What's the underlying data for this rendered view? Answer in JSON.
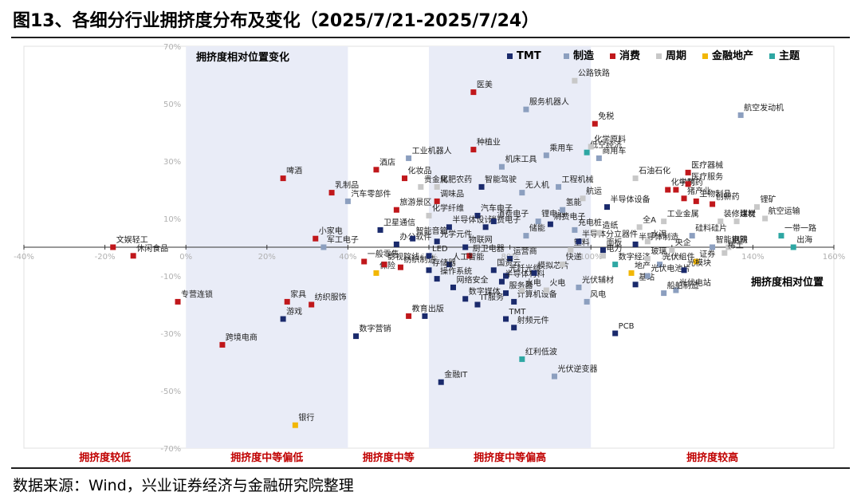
{
  "figure": {
    "title": "图13、各细分行业拥挤度分布及变化（2025/7/21-2025/7/24）",
    "source": "数据来源：Wind，兴业证券经济与金融研究院整理"
  },
  "colors": {
    "TMT": "#1a2a6c",
    "制造": "#8c9fbf",
    "消费": "#c0171b",
    "周期": "#c8c8c8",
    "金融地产": "#f2b705",
    "主题": "#2ea7a3",
    "zone_fill": "#e9ecf7",
    "zone_label": "#c00000"
  },
  "chart_data": {
    "type": "scatter",
    "xlabel": "拥挤度相对位置",
    "ylabel": "拥挤度相对位置变化",
    "x_ticks": [
      "-40%",
      "-20%",
      "0%",
      "20%",
      "40%",
      "60%",
      "80%",
      "100%",
      "120%",
      "140%",
      "160%"
    ],
    "y_ticks": [
      "70%",
      "50%",
      "30%",
      "10%",
      "-10%",
      "-30%",
      "-50%",
      "-70%"
    ],
    "xlim": [
      -40,
      160
    ],
    "ylim": [
      -70,
      70
    ],
    "legend_position": "top-right",
    "legend": [
      "TMT",
      "制造",
      "消费",
      "周期",
      "金融地产",
      "主题"
    ],
    "zones": [
      {
        "label": "拥挤度较低",
        "x_range": [
          -40,
          0
        ],
        "shaded": false
      },
      {
        "label": "拥挤度中等偏低",
        "x_range": [
          0,
          40
        ],
        "shaded": true
      },
      {
        "label": "拥挤度中等",
        "x_range": [
          40,
          60
        ],
        "shaded": false
      },
      {
        "label": "拥挤度中等偏高",
        "x_range": [
          60,
          100
        ],
        "shaded": true
      },
      {
        "label": "拥挤度较高",
        "x_range": [
          100,
          160
        ],
        "shaded": false
      }
    ],
    "points": [
      {
        "label": "文娱轻工",
        "group": "消费",
        "x": -18,
        "y": 0
      },
      {
        "label": "休闲食品",
        "group": "消费",
        "x": -13,
        "y": -3
      },
      {
        "label": "专营连锁",
        "group": "消费",
        "x": -2,
        "y": -19
      },
      {
        "label": "跨境电商",
        "group": "消费",
        "x": 9,
        "y": -34
      },
      {
        "label": "游戏",
        "group": "TMT",
        "x": 24,
        "y": -25
      },
      {
        "label": "家具",
        "group": "消费",
        "x": 25,
        "y": -19
      },
      {
        "label": "纺织服饰",
        "group": "消费",
        "x": 31,
        "y": -20
      },
      {
        "label": "银行",
        "group": "金融地产",
        "x": 27,
        "y": -62
      },
      {
        "label": "啤酒",
        "group": "消费",
        "x": 24,
        "y": 24
      },
      {
        "label": "乳制品",
        "group": "消费",
        "x": 36,
        "y": 19
      },
      {
        "label": "汽车零部件",
        "group": "制造",
        "x": 40,
        "y": 16
      },
      {
        "label": "小家电",
        "group": "消费",
        "x": 32,
        "y": 3
      },
      {
        "label": "军工电子",
        "group": "制造",
        "x": 34,
        "y": 0
      },
      {
        "label": "保险",
        "group": "金融地产",
        "x": 47,
        "y": -9
      },
      {
        "label": "一般零售",
        "group": "消费",
        "x": 44,
        "y": -5
      },
      {
        "label": "影视院线",
        "group": "消费",
        "x": 49,
        "y": -6
      },
      {
        "label": "数字营销",
        "group": "TMT",
        "x": 42,
        "y": -31
      },
      {
        "label": "酒店",
        "group": "消费",
        "x": 47,
        "y": 27
      },
      {
        "label": "工业机器人",
        "group": "制造",
        "x": 55,
        "y": 31
      },
      {
        "label": "化妆品",
        "group": "消费",
        "x": 54,
        "y": 24
      },
      {
        "label": "贵金属",
        "group": "周期",
        "x": 58,
        "y": 21
      },
      {
        "label": "旅游景区",
        "group": "消费",
        "x": 52,
        "y": 13
      },
      {
        "label": "卫星通信",
        "group": "TMT",
        "x": 48,
        "y": 6
      },
      {
        "label": "办公软件",
        "group": "TMT",
        "x": 52,
        "y": 1
      },
      {
        "label": "智能音箱",
        "group": "TMT",
        "x": 56,
        "y": 3
      },
      {
        "label": "纺织制造",
        "group": "消费",
        "x": 53,
        "y": -7
      },
      {
        "label": "教育",
        "group": "消费",
        "x": 55,
        "y": -24
      },
      {
        "label": "出版",
        "group": "TMT",
        "x": 59,
        "y": -24
      },
      {
        "label": "医美",
        "group": "消费",
        "x": 71,
        "y": 54
      },
      {
        "label": "种植业",
        "group": "消费",
        "x": 71,
        "y": 34
      },
      {
        "label": "化肥农药",
        "group": "周期",
        "x": 62,
        "y": 21
      },
      {
        "label": "调味品",
        "group": "消费",
        "x": 62,
        "y": 16
      },
      {
        "label": "智能驾驶",
        "group": "TMT",
        "x": 73,
        "y": 21
      },
      {
        "label": "化学纤维",
        "group": "周期",
        "x": 60,
        "y": 11
      },
      {
        "label": "汽车电子",
        "group": "TMT",
        "x": 72,
        "y": 11
      },
      {
        "label": "半导体设计",
        "group": "TMT",
        "x": 65,
        "y": 7
      },
      {
        "label": "消费电子",
        "group": "TMT",
        "x": 74,
        "y": 7
      },
      {
        "label": "光学元件",
        "group": "TMT",
        "x": 62,
        "y": 2
      },
      {
        "label": "物联网",
        "group": "TMT",
        "x": 69,
        "y": 0
      },
      {
        "label": "LED",
        "group": "TMT",
        "x": 60,
        "y": -3
      },
      {
        "label": "厨卫电器",
        "group": "消费",
        "x": 70,
        "y": -3
      },
      {
        "label": "人工智能",
        "group": "TMT",
        "x": 65,
        "y": -6
      },
      {
        "label": "存储器",
        "group": "TMT",
        "x": 60,
        "y": -8
      },
      {
        "label": "操作系统",
        "group": "TMT",
        "x": 62,
        "y": -11
      },
      {
        "label": "网络安全",
        "group": "TMT",
        "x": 66,
        "y": -14
      },
      {
        "label": "数字媒体",
        "group": "TMT",
        "x": 69,
        "y": -18
      },
      {
        "label": "IT服务",
        "group": "TMT",
        "x": 72,
        "y": -20
      },
      {
        "label": "金融IT",
        "group": "TMT",
        "x": 63,
        "y": -47
      },
      {
        "label": "服务机器人",
        "group": "制造",
        "x": 84,
        "y": 48
      },
      {
        "label": "公路铁路",
        "group": "周期",
        "x": 96,
        "y": 58
      },
      {
        "label": "机床工具",
        "group": "制造",
        "x": 78,
        "y": 28
      },
      {
        "label": "乘用车",
        "group": "制造",
        "x": 89,
        "y": 32
      },
      {
        "label": "无人机",
        "group": "制造",
        "x": 83,
        "y": 19
      },
      {
        "label": "工程机械",
        "group": "制造",
        "x": 92,
        "y": 21
      },
      {
        "label": "锂电池",
        "group": "制造",
        "x": 87,
        "y": 9
      },
      {
        "label": "消费电子",
        "group": "TMT",
        "x": 76,
        "y": 9
      },
      {
        "label": "运营商",
        "group": "TMT",
        "x": 80,
        "y": -4
      },
      {
        "label": "国资云",
        "group": "TMT",
        "x": 76,
        "y": -8
      },
      {
        "label": "光纤光缆",
        "group": "TMT",
        "x": 79,
        "y": -10
      },
      {
        "label": "半导体材料",
        "group": "TMT",
        "x": 78,
        "y": -12
      },
      {
        "label": "服务器",
        "group": "TMT",
        "x": 79,
        "y": -16
      },
      {
        "label": "计算机设备",
        "group": "TMT",
        "x": 81,
        "y": -19
      },
      {
        "label": "TMT",
        "group": "TMT",
        "x": 79,
        "y": -25
      },
      {
        "label": "射频元件",
        "group": "TMT",
        "x": 81,
        "y": -28
      },
      {
        "label": "红利低波",
        "group": "主题",
        "x": 83,
        "y": -39
      },
      {
        "label": "光伏逆变器",
        "group": "制造",
        "x": 91,
        "y": -45
      },
      {
        "label": "模拟芯片",
        "group": "TMT",
        "x": 86,
        "y": -9
      },
      {
        "label": "水电",
        "group": "周期",
        "x": 83,
        "y": -15
      },
      {
        "label": "火电",
        "group": "周期",
        "x": 89,
        "y": -15
      },
      {
        "label": "光伏辅材",
        "group": "制造",
        "x": 97,
        "y": -14
      },
      {
        "label": "风电",
        "group": "制造",
        "x": 99,
        "y": -19
      },
      {
        "label": "快递",
        "group": "周期",
        "x": 93,
        "y": -6
      },
      {
        "label": "塑料",
        "group": "周期",
        "x": 95,
        "y": -1
      },
      {
        "label": "半导体分立器件",
        "group": "TMT",
        "x": 97,
        "y": 2
      },
      {
        "label": "储能",
        "group": "制造",
        "x": 84,
        "y": 4
      },
      {
        "label": "消费电子",
        "group": "TMT",
        "x": 90,
        "y": 8
      },
      {
        "label": "充电桩",
        "group": "制造",
        "x": 96,
        "y": 6
      },
      {
        "label": "氢能",
        "group": "制造",
        "x": 93,
        "y": 13
      },
      {
        "label": "航运",
        "group": "周期",
        "x": 98,
        "y": 17
      },
      {
        "label": "低空经济",
        "group": "主题",
        "x": 99,
        "y": 33
      },
      {
        "label": "化学原料",
        "group": "周期",
        "x": 100,
        "y": 35
      },
      {
        "label": "免税",
        "group": "消费",
        "x": 101,
        "y": 43
      },
      {
        "label": "商用车",
        "group": "制造",
        "x": 102,
        "y": 31
      },
      {
        "label": "造纸",
        "group": "周期",
        "x": 102,
        "y": 5
      },
      {
        "label": "半导体设备",
        "group": "TMT",
        "x": 104,
        "y": 14
      },
      {
        "label": "石油石化",
        "group": "周期",
        "x": 111,
        "y": 24
      },
      {
        "label": "电力",
        "group": "周期",
        "x": 103,
        "y": -3
      },
      {
        "label": "数字经济",
        "group": "主题",
        "x": 106,
        "y": -6
      },
      {
        "label": "地产",
        "group": "金融地产",
        "x": 110,
        "y": -9
      },
      {
        "label": "基站",
        "group": "TMT",
        "x": 111,
        "y": -13
      },
      {
        "label": "PCB",
        "group": "TMT",
        "x": 106,
        "y": -30
      },
      {
        "label": "面板",
        "group": "TMT",
        "x": 103,
        "y": -1
      },
      {
        "label": "全A",
        "group": "周期",
        "x": 112,
        "y": 7
      },
      {
        "label": "半导体制造",
        "group": "TMT",
        "x": 111,
        "y": 1
      },
      {
        "label": "玻璃",
        "group": "周期",
        "x": 114,
        "y": -4
      },
      {
        "label": "光伏组件",
        "group": "制造",
        "x": 117,
        "y": -6
      },
      {
        "label": "光伏电池片",
        "group": "制造",
        "x": 114,
        "y": -10
      },
      {
        "label": "光伏电站",
        "group": "制造",
        "x": 121,
        "y": -15
      },
      {
        "label": "船舶制造",
        "group": "制造",
        "x": 118,
        "y": -16
      },
      {
        "label": "水泥",
        "group": "周期",
        "x": 114,
        "y": 2
      },
      {
        "label": "工业金属",
        "group": "周期",
        "x": 118,
        "y": 9
      },
      {
        "label": "化学制药",
        "group": "消费",
        "x": 119,
        "y": 20
      },
      {
        "label": "中药",
        "group": "消费",
        "x": 121,
        "y": 20
      },
      {
        "label": "猪产业",
        "group": "消费",
        "x": 123,
        "y": 17
      },
      {
        "label": "医疗器械",
        "group": "消费",
        "x": 124,
        "y": 26
      },
      {
        "label": "医疗服务",
        "group": "消费",
        "x": 124,
        "y": 22
      },
      {
        "label": "生物制品",
        "group": "消费",
        "x": 126,
        "y": 16
      },
      {
        "label": "创新药",
        "group": "消费",
        "x": 130,
        "y": 15
      },
      {
        "label": "硅料硅片",
        "group": "制造",
        "x": 125,
        "y": 4
      },
      {
        "label": "央企",
        "group": "周期",
        "x": 120,
        "y": -1
      },
      {
        "label": "证券",
        "group": "金融地产",
        "x": 126,
        "y": -5
      },
      {
        "label": "智能电网",
        "group": "制造",
        "x": 130,
        "y": 0
      },
      {
        "label": "光模块",
        "group": "TMT",
        "x": 123,
        "y": -8
      },
      {
        "label": "航空发动机",
        "group": "制造",
        "x": 137,
        "y": 46
      },
      {
        "label": "装修建材",
        "group": "周期",
        "x": 132,
        "y": 9
      },
      {
        "label": "煤炭",
        "group": "周期",
        "x": 136,
        "y": 9
      },
      {
        "label": "锂矿",
        "group": "周期",
        "x": 141,
        "y": 14
      },
      {
        "label": "航空运输",
        "group": "周期",
        "x": 143,
        "y": 10
      },
      {
        "label": "钢铁",
        "group": "周期",
        "x": 134,
        "y": 0
      },
      {
        "label": "稀土",
        "group": "周期",
        "x": 133,
        "y": -2
      },
      {
        "label": "一带一路",
        "group": "主题",
        "x": 147,
        "y": 4
      },
      {
        "label": "出海",
        "group": "主题",
        "x": 150,
        "y": 0
      }
    ]
  }
}
